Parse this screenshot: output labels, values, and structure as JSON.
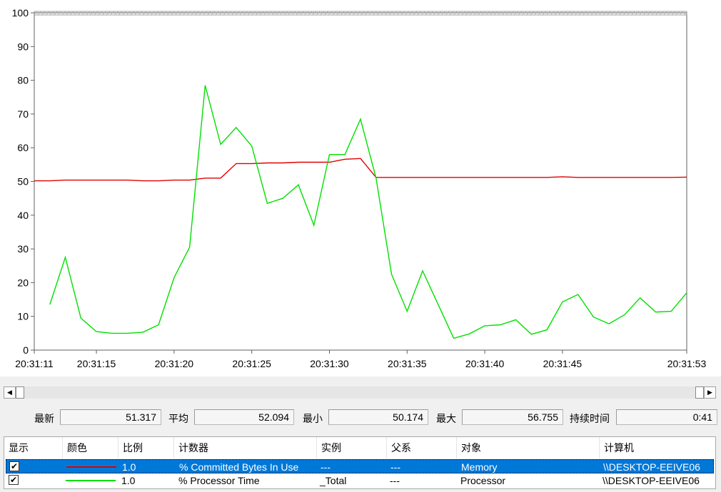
{
  "chart_data": {
    "type": "line",
    "x_ticks": [
      "20:31:11",
      "20:31:15",
      "20:31:20",
      "20:31:25",
      "20:31:30",
      "20:31:35",
      "20:31:40",
      "20:31:45",
      "20:31:53"
    ],
    "y_ticks": [
      "0",
      "10",
      "20",
      "30",
      "40",
      "50",
      "60",
      "70",
      "80",
      "90",
      "100"
    ],
    "ylim": [
      0,
      100
    ],
    "x_range_seconds": [
      11,
      53
    ],
    "grid": false,
    "series": [
      {
        "name": "% Committed Bytes In Use",
        "color": "#e00000",
        "x": [
          11,
          12,
          13,
          14,
          15,
          16,
          17,
          18,
          19,
          20,
          21,
          22,
          23,
          24,
          25,
          26,
          27,
          28,
          29,
          30,
          31,
          32,
          33,
          34,
          35,
          36,
          37,
          38,
          39,
          40,
          41,
          42,
          43,
          44,
          45,
          46,
          47,
          48,
          49,
          50,
          51,
          52,
          53
        ],
        "y": [
          50.2,
          50.2,
          50.4,
          50.4,
          50.4,
          50.4,
          50.4,
          50.2,
          50.2,
          50.4,
          50.4,
          51.0,
          51.0,
          55.3,
          55.3,
          55.5,
          55.5,
          55.7,
          55.7,
          55.7,
          56.6,
          56.8,
          51.2,
          51.2,
          51.2,
          51.2,
          51.2,
          51.2,
          51.2,
          51.2,
          51.2,
          51.2,
          51.2,
          51.2,
          51.4,
          51.2,
          51.2,
          51.2,
          51.2,
          51.2,
          51.2,
          51.2,
          51.3
        ]
      },
      {
        "name": "% Processor Time",
        "color": "#00e000",
        "x": [
          12,
          13,
          14,
          15,
          16,
          17,
          18,
          19,
          20,
          21,
          22,
          23,
          24,
          25,
          26,
          27,
          28,
          29,
          30,
          31,
          32,
          33,
          34,
          35,
          36,
          37,
          38,
          39,
          40,
          41,
          42,
          43,
          44,
          45,
          46,
          47,
          48,
          49,
          50,
          51,
          52,
          53
        ],
        "y": [
          13.5,
          27.5,
          9.5,
          5.5,
          5.0,
          5.0,
          5.3,
          7.5,
          21.5,
          30.5,
          78.5,
          61.0,
          66.0,
          60.5,
          43.5,
          45.0,
          49.0,
          37.0,
          58.0,
          58.0,
          68.5,
          51.0,
          22.5,
          11.5,
          23.5,
          13.5,
          3.5,
          4.8,
          7.2,
          7.5,
          9.0,
          4.7,
          6.0,
          14.3,
          16.5,
          9.8,
          7.8,
          10.5,
          15.5,
          11.3,
          11.5,
          17.0
        ]
      }
    ]
  },
  "scrollbar": {
    "left_arrow": "◀",
    "right_arrow": "▶"
  },
  "stats": {
    "last_label": "最新",
    "last_value": "51.317",
    "avg_label": "平均",
    "avg_value": "52.094",
    "min_label": "最小",
    "min_value": "50.174",
    "max_label": "最大",
    "max_value": "56.755",
    "duration_label": "持续时间",
    "duration_value": "0:41"
  },
  "table": {
    "headers": [
      "显示",
      "颜色",
      "比例",
      "计数器",
      "实例",
      "父系",
      "对象",
      "计算机"
    ],
    "rows": [
      {
        "checked": "✔",
        "color": "#e00000",
        "scale": "1.0",
        "counter": "% Committed Bytes In Use",
        "instance": "---",
        "parent": "---",
        "object": "Memory",
        "computer": "\\\\DESKTOP-EEIVE06"
      },
      {
        "checked": "✔",
        "color": "#00e000",
        "scale": "1.0",
        "counter": "% Processor Time",
        "instance": "_Total",
        "parent": "---",
        "object": "Processor",
        "computer": "\\\\DESKTOP-EEIVE06"
      }
    ]
  }
}
